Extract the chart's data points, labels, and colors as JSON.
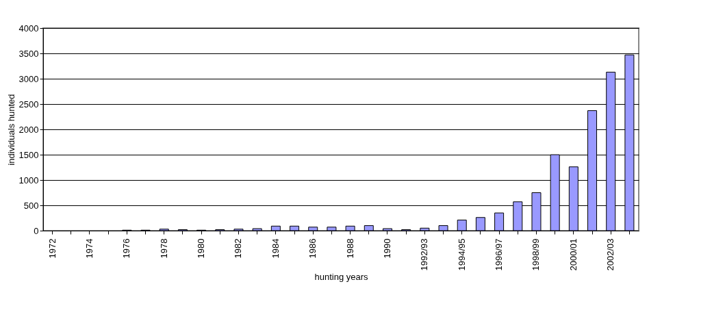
{
  "chart_data": {
    "type": "bar",
    "xlabel": "hunting years",
    "ylabel": "individuals hunted",
    "categories": [
      "1972",
      null,
      "1974",
      null,
      "1976",
      null,
      "1978",
      null,
      "1980",
      null,
      "1982",
      null,
      "1984",
      null,
      "1986",
      null,
      "1988",
      null,
      "1990",
      null,
      "1992/93",
      null,
      "1994/95",
      null,
      "1996/97",
      null,
      "1998/99",
      null,
      "2000/01",
      null,
      "2002/03",
      null
    ],
    "values": [
      0,
      0,
      0,
      0,
      10,
      10,
      30,
      20,
      10,
      20,
      30,
      40,
      90,
      90,
      70,
      70,
      90,
      100,
      40,
      20,
      50,
      100,
      210,
      260,
      350,
      570,
      750,
      1500,
      1260,
      2370,
      3130,
      3470
    ],
    "color": "#9999ff",
    "ylim": [
      0,
      4000
    ],
    "yticks": [
      0,
      500,
      1000,
      1500,
      2000,
      2500,
      3000,
      3500,
      4000
    ],
    "grid": "y"
  }
}
